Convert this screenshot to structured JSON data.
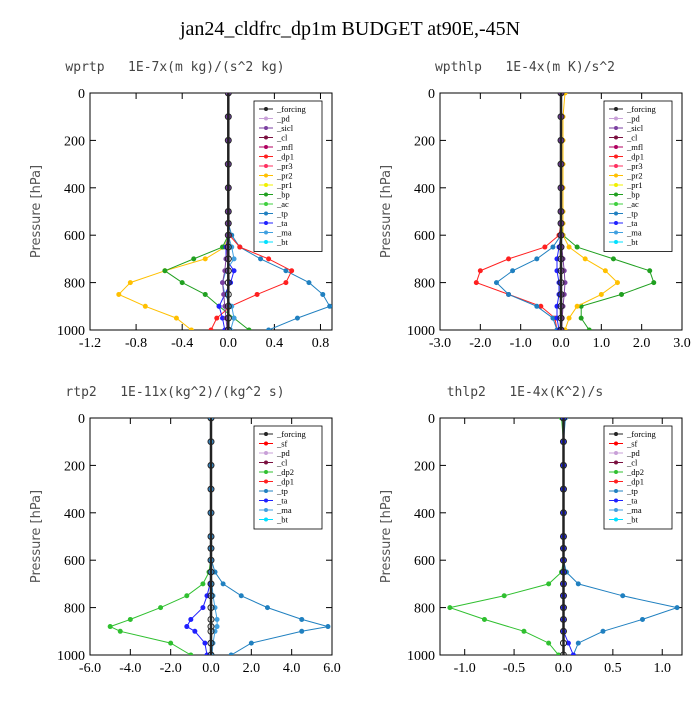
{
  "title": "jan24_cldfrc_dp1m  BUDGET at90E,-45N",
  "colors": {
    "_forcing": "#222222",
    "_sf": "#ff0000",
    "_pd": "#c8a0d8",
    "_sicl": "#7a3fa0",
    "_cl": "#7a1040",
    "_mfl": "#b00060",
    "_dp1": "#ff2020",
    "_dp2": "#30c030",
    "_pr3": "#ff3060",
    "_pr2": "#ffc000",
    "_pr1": "#f0f000",
    "_bp": "#20a020",
    "_ac": "#40d040",
    "_tp": "#2080c0",
    "_ta": "#2020ff",
    "_ma": "#40a0e0",
    "_bt": "#00e0ff"
  },
  "chart_data": [
    {
      "type": "line",
      "title": "wprtp   1E-7x(m kg)/(s^2 kg)",
      "ylabel": "Pressure [hPa]",
      "xlim": [
        -1.2,
        0.9
      ],
      "ylim": [
        1000,
        0
      ],
      "xticks": [
        "-1.2",
        "-0.8",
        "-0.4",
        "0.0",
        "0.4",
        "0.8"
      ],
      "xtick_values": [
        -1.2,
        -0.8,
        -0.4,
        0.0,
        0.4,
        0.8
      ],
      "yticks": [
        "0",
        "200",
        "400",
        "600",
        "800",
        "1000"
      ],
      "y": [
        0,
        100,
        200,
        300,
        400,
        500,
        550,
        600,
        650,
        700,
        750,
        800,
        850,
        900,
        950,
        1000
      ],
      "legend": [
        "_forcing",
        "_pd",
        "_sicl",
        "_cl",
        "_mfl",
        "_dp1",
        "_pr3",
        "_pr2",
        "_pr1",
        "_bp",
        "_ac",
        "_tp",
        "_ta",
        "_ma",
        "_bt"
      ],
      "series": [
        {
          "name": "_pr2",
          "x": [
            0,
            0,
            0,
            0,
            0,
            0,
            0,
            0,
            -0.03,
            -0.2,
            -0.55,
            -0.85,
            -0.95,
            -0.72,
            -0.45,
            -0.32
          ]
        },
        {
          "name": "_bp",
          "x": [
            0,
            0,
            0,
            0,
            0,
            0,
            0,
            0,
            -0.05,
            -0.3,
            -0.55,
            -0.4,
            -0.2,
            -0.08,
            0.05,
            0.18
          ]
        },
        {
          "name": "_tp",
          "x": [
            0,
            0,
            0,
            0,
            0,
            0,
            0,
            0.03,
            0.1,
            0.28,
            0.5,
            0.7,
            0.82,
            0.88,
            0.6,
            0.35
          ]
        },
        {
          "name": "_dp1",
          "x": [
            0,
            0,
            0,
            0,
            0,
            0,
            0,
            0.01,
            0.1,
            0.35,
            0.55,
            0.5,
            0.25,
            0.02,
            -0.1,
            -0.15
          ]
        },
        {
          "name": "_ta",
          "x": [
            0,
            0,
            0,
            0,
            0,
            0,
            0,
            0,
            -0.02,
            -0.02,
            0.05,
            0.02,
            -0.03,
            -0.08,
            -0.05,
            -0.03
          ]
        },
        {
          "name": "_ma",
          "x": [
            0,
            0,
            0,
            0,
            0,
            0,
            0,
            0,
            0.03,
            0.05,
            -0.02,
            -0.05,
            -0.03,
            0.03,
            0.05,
            0.02
          ]
        },
        {
          "name": "_sicl",
          "x": [
            0,
            0,
            0,
            0,
            0,
            0,
            0,
            0,
            -0.01,
            -0.02,
            -0.03,
            -0.05,
            -0.04,
            -0.03,
            -0.02,
            -0.01
          ]
        },
        {
          "name": "_forcing",
          "x": [
            0,
            0,
            0,
            0,
            0,
            0,
            0,
            0,
            0,
            0,
            0,
            0,
            0,
            0,
            0,
            0
          ]
        }
      ]
    },
    {
      "type": "line",
      "title": "wpthlp   1E-4x(m K)/s^2",
      "ylabel": "Pressure [hPa]",
      "xlim": [
        -3.0,
        3.0
      ],
      "ylim": [
        1000,
        0
      ],
      "xticks": [
        "-3.0",
        "-2.0",
        "-1.0",
        "0.0",
        "1.0",
        "2.0",
        "3.0"
      ],
      "xtick_values": [
        -3.0,
        -2.0,
        -1.0,
        0.0,
        1.0,
        2.0,
        3.0
      ],
      "yticks": [
        "0",
        "200",
        "400",
        "600",
        "800",
        "1000"
      ],
      "y": [
        0,
        100,
        200,
        300,
        400,
        500,
        550,
        600,
        650,
        700,
        750,
        800,
        850,
        900,
        950,
        1000
      ],
      "legend": [
        "_forcing",
        "_pd",
        "_sicl",
        "_cl",
        "_mfl",
        "_dp1",
        "_pr3",
        "_pr2",
        "_pr1",
        "_bp",
        "_ac",
        "_tp",
        "_ta",
        "_ma",
        "_bt"
      ],
      "series": [
        {
          "name": "_dp1",
          "x": [
            0,
            0,
            0,
            0,
            0,
            0,
            0,
            -0.05,
            -0.4,
            -1.3,
            -2.0,
            -2.1,
            -1.3,
            -0.5,
            -0.15,
            -0.1
          ]
        },
        {
          "name": "_tp",
          "x": [
            0,
            0,
            0,
            0,
            0,
            0,
            0,
            0,
            -0.2,
            -0.6,
            -1.2,
            -1.6,
            -1.3,
            -0.6,
            -0.2,
            -0.1
          ]
        },
        {
          "name": "_bp",
          "x": [
            0,
            0,
            0,
            0,
            0,
            0,
            0,
            0.05,
            0.4,
            1.3,
            2.2,
            2.3,
            1.5,
            0.5,
            0.5,
            0.7
          ]
        },
        {
          "name": "_pr2",
          "x": [
            0.1,
            0.05,
            0.05,
            0.05,
            0.05,
            0.05,
            0.05,
            0.05,
            0.2,
            0.6,
            1.1,
            1.4,
            1.0,
            0.4,
            0.2,
            0.1
          ]
        },
        {
          "name": "_ta",
          "x": [
            0,
            0,
            0,
            0,
            0,
            0,
            0,
            0,
            -0.05,
            -0.1,
            -0.1,
            -0.05,
            -0.05,
            -0.1,
            -0.1,
            -0.05
          ]
        },
        {
          "name": "_sicl",
          "x": [
            0,
            0,
            0,
            0,
            0,
            0,
            0,
            0,
            0.02,
            0.05,
            0.08,
            0.1,
            0.08,
            0.05,
            0.03,
            0.02
          ]
        },
        {
          "name": "_forcing",
          "x": [
            0,
            0,
            0,
            0,
            0,
            0,
            0,
            0,
            0,
            0,
            0,
            0,
            0,
            0,
            0,
            0
          ]
        }
      ]
    },
    {
      "type": "line",
      "title": "rtp2   1E-11x(kg^2)/(kg^2 s)",
      "ylabel": "Pressure [hPa]",
      "xlim": [
        -6.0,
        6.0
      ],
      "ylim": [
        1000,
        0
      ],
      "xticks": [
        "-6.0",
        "-4.0",
        "-2.0",
        "0.0",
        "2.0",
        "4.0",
        "6.0"
      ],
      "xtick_values": [
        -6.0,
        -4.0,
        -2.0,
        0.0,
        2.0,
        4.0,
        6.0
      ],
      "yticks": [
        "0",
        "200",
        "400",
        "600",
        "800",
        "1000"
      ],
      "y": [
        0,
        100,
        200,
        300,
        400,
        500,
        550,
        600,
        650,
        700,
        750,
        800,
        850,
        880,
        900,
        950,
        1000
      ],
      "legend": [
        "_forcing",
        "_sf",
        "_pd",
        "_cl",
        "_dp2",
        "_dp1",
        "_tp",
        "_ta",
        "_ma",
        "_bt"
      ],
      "series": [
        {
          "name": "_dp2",
          "x": [
            0,
            0,
            0,
            0,
            0,
            0,
            0,
            -0.02,
            -0.1,
            -0.4,
            -1.2,
            -2.5,
            -4.0,
            -5.0,
            -4.5,
            -2.0,
            -1.0
          ]
        },
        {
          "name": "_tp",
          "x": [
            0,
            0,
            0,
            0,
            0,
            0,
            0,
            0.02,
            0.2,
            0.6,
            1.5,
            2.8,
            4.5,
            5.8,
            4.5,
            2.0,
            1.0
          ]
        },
        {
          "name": "_ta",
          "x": [
            0,
            0,
            0,
            0,
            0,
            0,
            0,
            0,
            0,
            -0.05,
            -0.2,
            -0.4,
            -1.0,
            -1.2,
            -0.8,
            -0.3,
            -0.2
          ]
        },
        {
          "name": "_ma",
          "x": [
            0,
            0,
            0,
            0,
            0,
            0,
            0,
            0,
            0,
            0.05,
            0.1,
            0.2,
            0.3,
            0.3,
            0.2,
            0.1,
            0.05
          ]
        },
        {
          "name": "_forcing",
          "x": [
            0,
            0,
            0,
            0,
            0,
            0,
            0,
            0,
            0,
            0,
            0,
            0,
            0,
            0,
            0,
            0,
            0
          ]
        }
      ]
    },
    {
      "type": "line",
      "title": "thlp2   1E-4x(K^2)/s",
      "ylabel": "Pressure [hPa]",
      "xlim": [
        -1.25,
        1.2
      ],
      "ylim": [
        1000,
        0
      ],
      "xticks": [
        "-1.0",
        "-0.5",
        "0.0",
        "0.5",
        "1.0"
      ],
      "xtick_values": [
        -1.0,
        -0.5,
        0.0,
        0.5,
        1.0
      ],
      "yticks": [
        "0",
        "200",
        "400",
        "600",
        "800",
        "1000"
      ],
      "y": [
        0,
        100,
        200,
        300,
        400,
        500,
        550,
        600,
        650,
        700,
        750,
        800,
        850,
        900,
        950,
        1000
      ],
      "legend": [
        "_forcing",
        "_sf",
        "_pd",
        "_cl",
        "_dp2",
        "_dp1",
        "_tp",
        "_ta",
        "_ma",
        "_bt"
      ],
      "series": [
        {
          "name": "_dp2",
          "x": [
            -0.02,
            0,
            0,
            0,
            0,
            0,
            0,
            0,
            -0.02,
            -0.15,
            -0.6,
            -1.15,
            -0.8,
            -0.4,
            -0.15,
            -0.05
          ]
        },
        {
          "name": "_tp",
          "x": [
            0.02,
            0,
            0,
            0,
            0,
            0,
            0,
            0,
            0.03,
            0.15,
            0.6,
            1.15,
            0.8,
            0.4,
            0.15,
            0.1
          ]
        },
        {
          "name": "_ta",
          "x": [
            0,
            0,
            0,
            0,
            0,
            0,
            0,
            0,
            0,
            0,
            0,
            0,
            0,
            0,
            0.05,
            0.1
          ]
        },
        {
          "name": "_forcing",
          "x": [
            0,
            0,
            0,
            0,
            0,
            0,
            0,
            0,
            0,
            0,
            0,
            0,
            0,
            0,
            0,
            0
          ]
        }
      ]
    }
  ]
}
